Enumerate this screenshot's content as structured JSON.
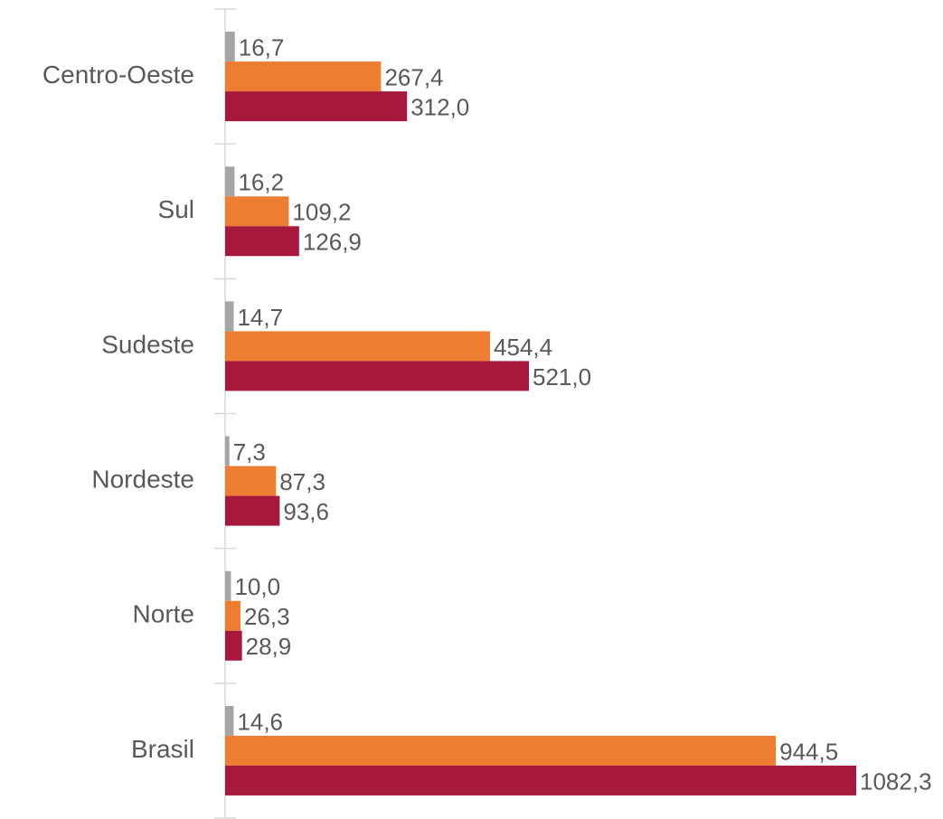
{
  "chart_data": {
    "type": "hbar",
    "categories": [
      "Centro-Oeste",
      "Sul",
      "Sudeste",
      "Nordeste",
      "Norte",
      "Brasil"
    ],
    "series": [
      {
        "color": "#a5a5a5",
        "values": [
          16.7,
          16.2,
          14.7,
          7.3,
          10.0,
          14.6
        ],
        "value_labels": [
          "16,7",
          "16,2",
          "14,7",
          "7,3",
          "10,0",
          "14,6"
        ]
      },
      {
        "color": "#ed7d31",
        "values": [
          267.4,
          109.2,
          454.4,
          87.3,
          26.3,
          944.5
        ],
        "value_labels": [
          "267,4",
          "109,2",
          "454,4",
          "87,3",
          "26,3",
          "944,5"
        ]
      },
      {
        "color": "#a6193c",
        "values": [
          312.0,
          126.9,
          521.0,
          93.6,
          28.9,
          1082.3
        ],
        "value_labels": [
          "312,0",
          "126,9",
          "521,0",
          "93,6",
          "28,9",
          "1082,3"
        ]
      }
    ]
  }
}
